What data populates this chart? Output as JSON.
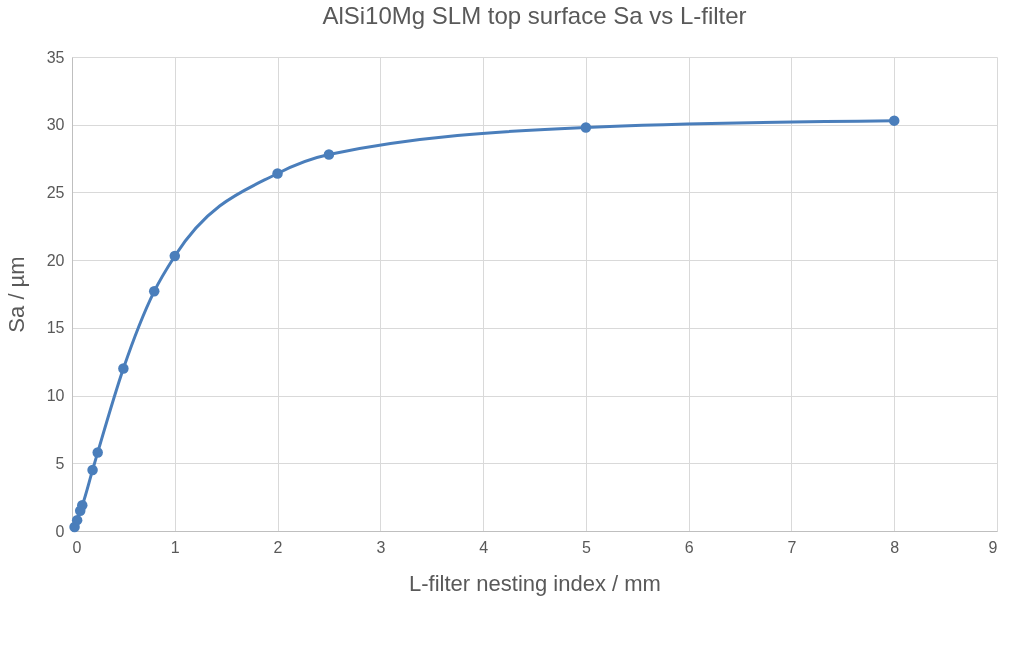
{
  "chart_data": {
    "type": "line",
    "title": "AlSi10Mg SLM top surface Sa vs L-filter",
    "xlabel": "L-filter nesting index / mm",
    "ylabel": "Sa / µm",
    "x": [
      0.025,
      0.05,
      0.08,
      0.1,
      0.2,
      0.25,
      0.5,
      0.8,
      1,
      2,
      2.5,
      5,
      8
    ],
    "series": [
      {
        "color": "#4a7ebb",
        "values": [
          0.3,
          0.8,
          1.5,
          1.9,
          4.5,
          5.8,
          12.0,
          17.7,
          20.3,
          26.4,
          27.8,
          29.8,
          30.3
        ]
      }
    ],
    "xlim": [
      0,
      9
    ],
    "xticks": [
      0,
      1,
      2,
      3,
      4,
      5,
      6,
      7,
      8,
      9
    ],
    "ylim": [
      0,
      35
    ],
    "yticks": [
      0,
      5,
      10,
      15,
      20,
      25,
      30,
      35
    ],
    "grid": true,
    "marker": "circle",
    "line_style": "solid"
  }
}
